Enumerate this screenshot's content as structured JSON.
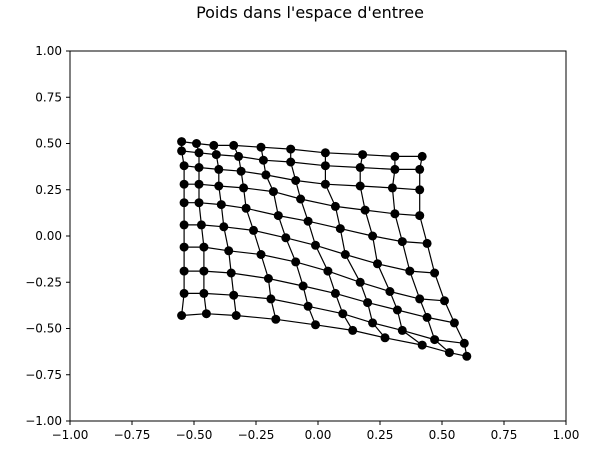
{
  "chart_data": {
    "type": "scatter",
    "title": "Poids dans l'espace d'entree",
    "xlabel": "",
    "ylabel": "",
    "xlim": [
      -1.0,
      1.0
    ],
    "ylim": [
      -1.0,
      1.0
    ],
    "grid": false,
    "x_ticks": [
      "−1.00",
      "−0.75",
      "−0.50",
      "−0.25",
      "0.00",
      "0.25",
      "0.50",
      "0.75",
      "1.00"
    ],
    "y_ticks": [
      "1.00",
      "0.75",
      "0.50",
      "0.25",
      "0.00",
      "−0.25",
      "−0.50",
      "−0.75",
      "−1.00"
    ],
    "marker_color": "#000000",
    "line_color": "#000000",
    "grid_rows": [
      [
        [
          -0.55,
          0.51
        ],
        [
          -0.49,
          0.5
        ],
        [
          -0.42,
          0.49
        ],
        [
          -0.34,
          0.49
        ],
        [
          -0.23,
          0.48
        ],
        [
          -0.11,
          0.47
        ],
        [
          0.03,
          0.45
        ],
        [
          0.18,
          0.44
        ],
        [
          0.31,
          0.43
        ],
        [
          0.42,
          0.43
        ]
      ],
      [
        [
          -0.55,
          0.46
        ],
        [
          -0.48,
          0.45
        ],
        [
          -0.41,
          0.44
        ],
        [
          -0.32,
          0.43
        ],
        [
          -0.22,
          0.41
        ],
        [
          -0.11,
          0.4
        ],
        [
          0.03,
          0.38
        ],
        [
          0.17,
          0.37
        ],
        [
          0.31,
          0.36
        ],
        [
          0.41,
          0.36
        ]
      ],
      [
        [
          -0.54,
          0.38
        ],
        [
          -0.48,
          0.37
        ],
        [
          -0.4,
          0.36
        ],
        [
          -0.31,
          0.35
        ],
        [
          -0.21,
          0.33
        ],
        [
          -0.09,
          0.3
        ],
        [
          0.03,
          0.28
        ],
        [
          0.17,
          0.27
        ],
        [
          0.3,
          0.26
        ],
        [
          0.41,
          0.25
        ]
      ],
      [
        [
          -0.54,
          0.28
        ],
        [
          -0.48,
          0.28
        ],
        [
          -0.4,
          0.27
        ],
        [
          -0.3,
          0.26
        ],
        [
          -0.18,
          0.24
        ],
        [
          -0.07,
          0.2
        ],
        [
          0.07,
          0.16
        ],
        [
          0.19,
          0.14
        ],
        [
          0.31,
          0.12
        ],
        [
          0.41,
          0.11
        ]
      ],
      [
        [
          -0.54,
          0.18
        ],
        [
          -0.48,
          0.18
        ],
        [
          -0.39,
          0.17
        ],
        [
          -0.29,
          0.15
        ],
        [
          -0.16,
          0.11
        ],
        [
          -0.04,
          0.08
        ],
        [
          0.09,
          0.04
        ],
        [
          0.22,
          0.0
        ],
        [
          0.34,
          -0.03
        ],
        [
          0.44,
          -0.04
        ]
      ],
      [
        [
          -0.54,
          0.06
        ],
        [
          -0.47,
          0.06
        ],
        [
          -0.38,
          0.05
        ],
        [
          -0.26,
          0.03
        ],
        [
          -0.13,
          -0.01
        ],
        [
          -0.01,
          -0.05
        ],
        [
          0.11,
          -0.1
        ],
        [
          0.24,
          -0.15
        ],
        [
          0.37,
          -0.19
        ],
        [
          0.47,
          -0.2
        ]
      ],
      [
        [
          -0.54,
          -0.06
        ],
        [
          -0.46,
          -0.06
        ],
        [
          -0.36,
          -0.08
        ],
        [
          -0.23,
          -0.1
        ],
        [
          -0.09,
          -0.14
        ],
        [
          0.04,
          -0.19
        ],
        [
          0.17,
          -0.25
        ],
        [
          0.29,
          -0.3
        ],
        [
          0.41,
          -0.34
        ],
        [
          0.51,
          -0.35
        ]
      ],
      [
        [
          -0.54,
          -0.19
        ],
        [
          -0.46,
          -0.19
        ],
        [
          -0.35,
          -0.2
        ],
        [
          -0.2,
          -0.23
        ],
        [
          -0.06,
          -0.27
        ],
        [
          0.07,
          -0.31
        ],
        [
          0.2,
          -0.36
        ],
        [
          0.32,
          -0.4
        ],
        [
          0.44,
          -0.44
        ],
        [
          0.55,
          -0.47
        ]
      ],
      [
        [
          -0.54,
          -0.31
        ],
        [
          -0.46,
          -0.31
        ],
        [
          -0.34,
          -0.32
        ],
        [
          -0.19,
          -0.34
        ],
        [
          -0.04,
          -0.38
        ],
        [
          0.1,
          -0.42
        ],
        [
          0.22,
          -0.47
        ],
        [
          0.34,
          -0.51
        ],
        [
          0.47,
          -0.56
        ],
        [
          0.59,
          -0.58
        ]
      ],
      [
        [
          -0.55,
          -0.43
        ],
        [
          -0.45,
          -0.42
        ],
        [
          -0.33,
          -0.43
        ],
        [
          -0.17,
          -0.45
        ],
        [
          -0.01,
          -0.48
        ],
        [
          0.14,
          -0.51
        ],
        [
          0.27,
          -0.55
        ],
        [
          0.42,
          -0.59
        ],
        [
          0.53,
          -0.63
        ],
        [
          0.6,
          -0.65
        ]
      ]
    ]
  }
}
